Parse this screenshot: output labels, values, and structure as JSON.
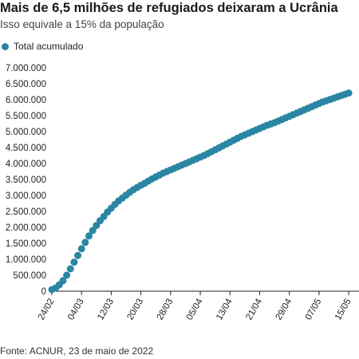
{
  "header": {
    "title": "Mais de 6,5 milhões de refugiados deixaram a Ucrânia",
    "subtitle": "Isso equivale a 15% da população"
  },
  "footer": {
    "source": "Fonte: ACNUR, 23 de maio de 2022"
  },
  "colors": {
    "series": "#2b86a3",
    "axis": "#222222"
  },
  "chart_data": {
    "type": "scatter",
    "xlabel": "",
    "ylabel": "",
    "ylim": [
      0,
      7000000
    ],
    "grid": false,
    "legend_position": "top-left",
    "y_ticks": [
      {
        "value": 0,
        "label": "0"
      },
      {
        "value": 500000,
        "label": "500.000"
      },
      {
        "value": 1000000,
        "label": "1.000.000"
      },
      {
        "value": 1500000,
        "label": "1.500.000"
      },
      {
        "value": 2000000,
        "label": "2.000.000"
      },
      {
        "value": 2500000,
        "label": "2.500.000"
      },
      {
        "value": 3000000,
        "label": "3.000.000"
      },
      {
        "value": 3500000,
        "label": "3.500.000"
      },
      {
        "value": 4000000,
        "label": "4.000.000"
      },
      {
        "value": 4500000,
        "label": "4.500.000"
      },
      {
        "value": 5000000,
        "label": "5.000.000"
      },
      {
        "value": 5500000,
        "label": "5.500.000"
      },
      {
        "value": 6000000,
        "label": "6.000.000"
      },
      {
        "value": 6500000,
        "label": "6.500.000"
      },
      {
        "value": 7000000,
        "label": "7.000.000"
      }
    ],
    "x_ticks": [
      {
        "day": 0,
        "label": "24/02"
      },
      {
        "day": 8,
        "label": "04/03"
      },
      {
        "day": 16,
        "label": "12/03"
      },
      {
        "day": 24,
        "label": "20/03"
      },
      {
        "day": 32,
        "label": "28/03"
      },
      {
        "day": 40,
        "label": "05/04"
      },
      {
        "day": 48,
        "label": "13/04"
      },
      {
        "day": 56,
        "label": "21/04"
      },
      {
        "day": 64,
        "label": "29/04"
      },
      {
        "day": 72,
        "label": "07/05"
      },
      {
        "day": 80,
        "label": "15/05"
      }
    ],
    "series": [
      {
        "name": "Total acumulado",
        "points": [
          [
            0,
            50000
          ],
          [
            1,
            100000
          ],
          [
            2,
            200000
          ],
          [
            3,
            330000
          ],
          [
            4,
            500000
          ],
          [
            5,
            700000
          ],
          [
            6,
            910000
          ],
          [
            7,
            1120000
          ],
          [
            8,
            1330000
          ],
          [
            9,
            1530000
          ],
          [
            10,
            1730000
          ],
          [
            11,
            1900000
          ],
          [
            12,
            2060000
          ],
          [
            13,
            2210000
          ],
          [
            14,
            2340000
          ],
          [
            15,
            2480000
          ],
          [
            16,
            2600000
          ],
          [
            17,
            2720000
          ],
          [
            18,
            2830000
          ],
          [
            19,
            2920000
          ],
          [
            20,
            3010000
          ],
          [
            21,
            3100000
          ],
          [
            22,
            3180000
          ],
          [
            23,
            3250000
          ],
          [
            24,
            3320000
          ],
          [
            25,
            3380000
          ],
          [
            26,
            3450000
          ],
          [
            27,
            3520000
          ],
          [
            28,
            3580000
          ],
          [
            29,
            3640000
          ],
          [
            30,
            3700000
          ],
          [
            31,
            3750000
          ],
          [
            32,
            3800000
          ],
          [
            33,
            3850000
          ],
          [
            34,
            3900000
          ],
          [
            35,
            3950000
          ],
          [
            36,
            4000000
          ],
          [
            37,
            4050000
          ],
          [
            38,
            4100000
          ],
          [
            39,
            4150000
          ],
          [
            40,
            4200000
          ],
          [
            41,
            4250000
          ],
          [
            42,
            4310000
          ],
          [
            43,
            4370000
          ],
          [
            44,
            4430000
          ],
          [
            45,
            4490000
          ],
          [
            46,
            4550000
          ],
          [
            47,
            4610000
          ],
          [
            48,
            4670000
          ],
          [
            49,
            4730000
          ],
          [
            50,
            4790000
          ],
          [
            51,
            4850000
          ],
          [
            52,
            4900000
          ],
          [
            53,
            4950000
          ],
          [
            54,
            5000000
          ],
          [
            55,
            5050000
          ],
          [
            56,
            5100000
          ],
          [
            57,
            5150000
          ],
          [
            58,
            5200000
          ],
          [
            59,
            5240000
          ],
          [
            60,
            5280000
          ],
          [
            61,
            5330000
          ],
          [
            62,
            5380000
          ],
          [
            63,
            5430000
          ],
          [
            64,
            5480000
          ],
          [
            65,
            5530000
          ],
          [
            66,
            5580000
          ],
          [
            67,
            5630000
          ],
          [
            68,
            5680000
          ],
          [
            69,
            5730000
          ],
          [
            70,
            5780000
          ],
          [
            71,
            5830000
          ],
          [
            72,
            5880000
          ],
          [
            73,
            5930000
          ],
          [
            74,
            5970000
          ],
          [
            75,
            6010000
          ],
          [
            76,
            6050000
          ],
          [
            77,
            6090000
          ],
          [
            78,
            6130000
          ],
          [
            79,
            6170000
          ],
          [
            80,
            6210000
          ]
        ]
      }
    ]
  }
}
